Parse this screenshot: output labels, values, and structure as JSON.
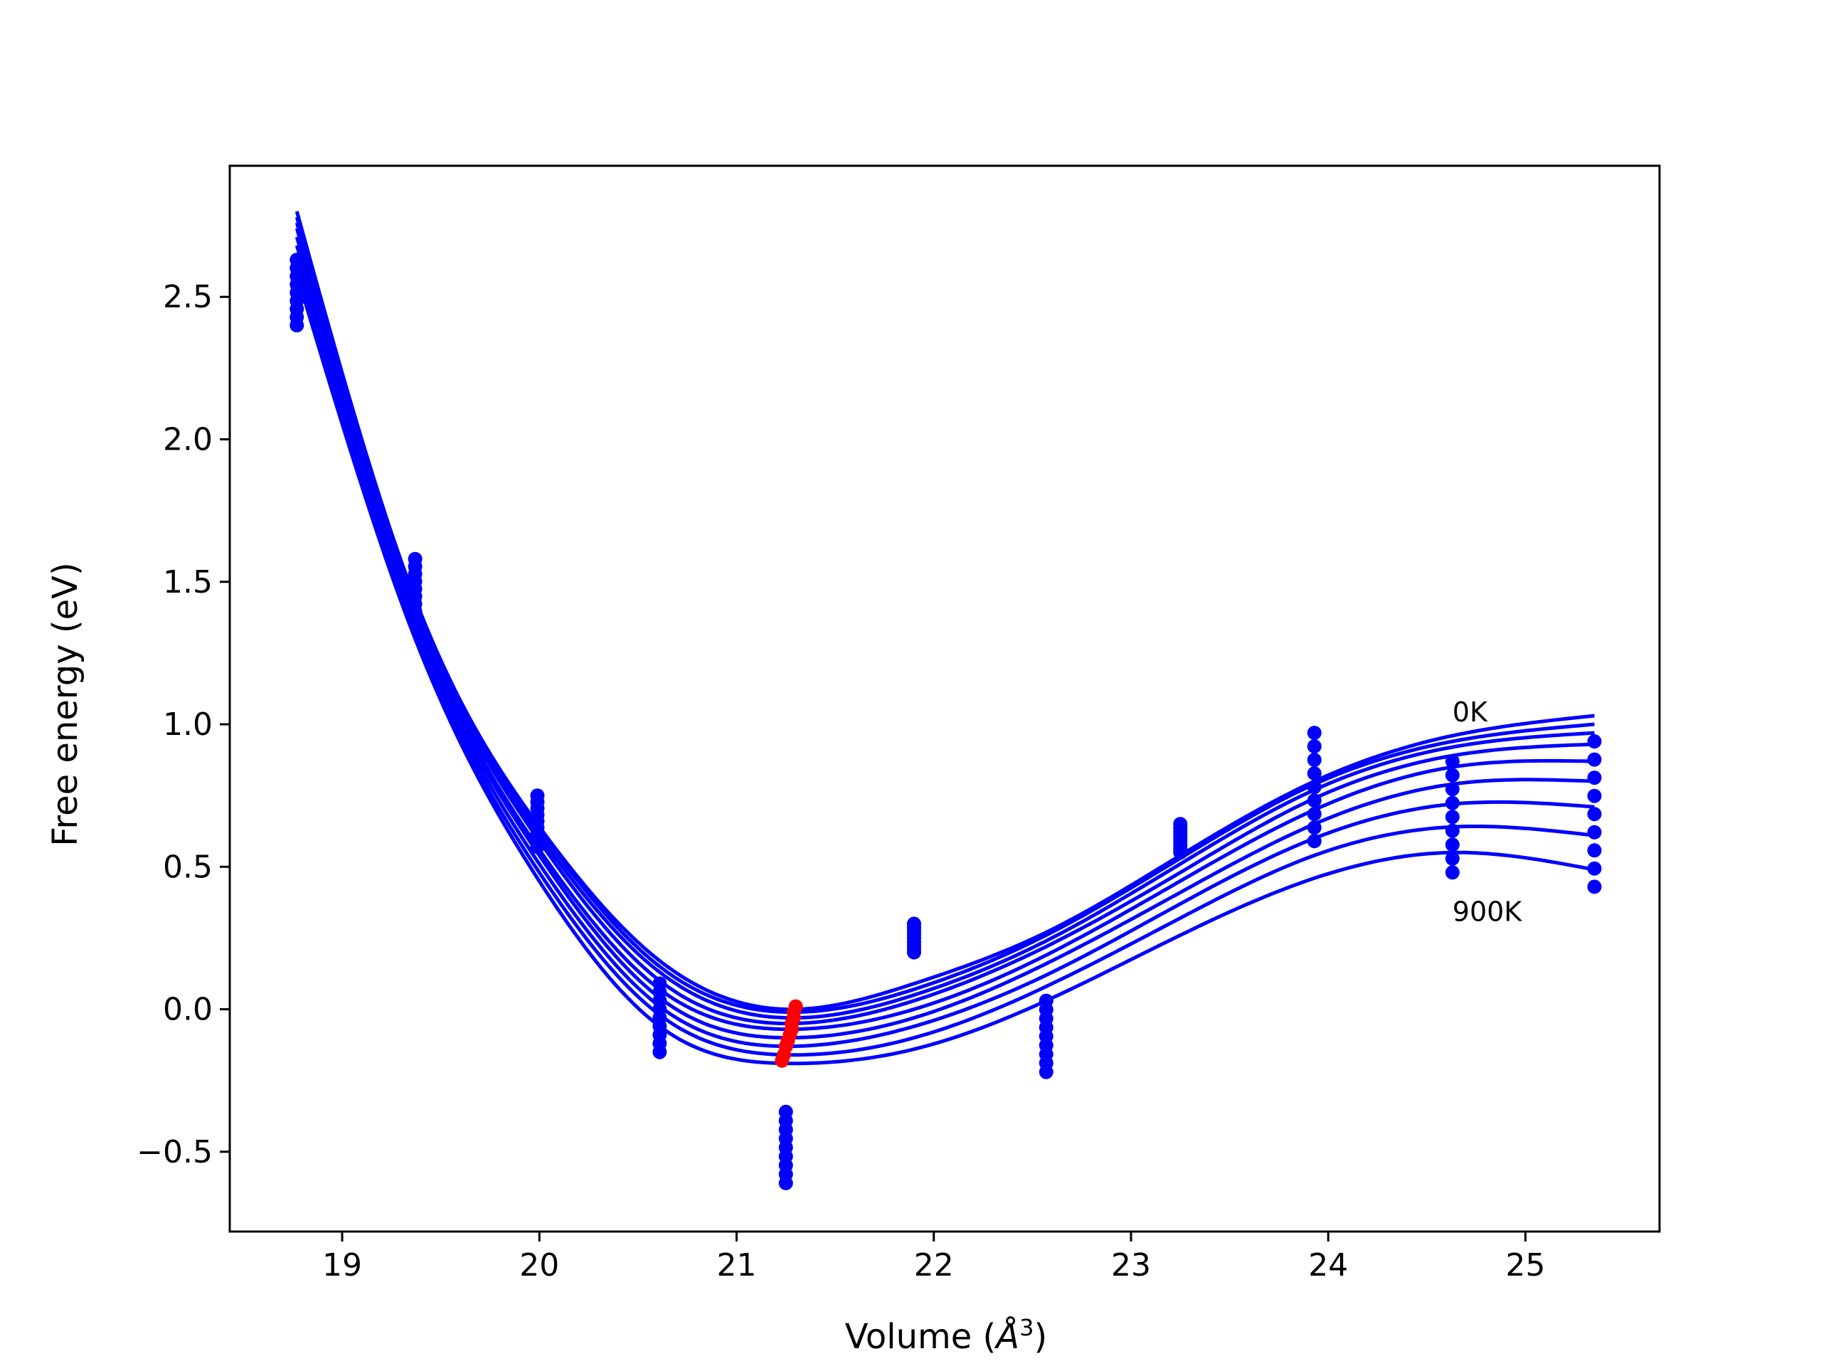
{
  "chart_data": {
    "type": "line",
    "xlabel_text": "Volume (",
    "xlabel_unit": "Å",
    "xlabel_sup": "3",
    "xlabel_close": ")",
    "ylabel": "Free energy (eV)",
    "xlim": [
      18.43,
      25.68
    ],
    "ylim": [
      -0.78,
      2.96
    ],
    "xticks": [
      19,
      20,
      21,
      22,
      23,
      24,
      25
    ],
    "yticks": [
      -0.5,
      0.0,
      0.5,
      1.0,
      1.5,
      2.0,
      2.5
    ],
    "xtick_labels": [
      "19",
      "20",
      "21",
      "22",
      "23",
      "24",
      "25"
    ],
    "ytick_labels": [
      "−0.5",
      "0.0",
      "0.5",
      "1.0",
      "1.5",
      "2.0",
      "2.5"
    ],
    "line_color": "#0000ff",
    "min_color": "#ff0000",
    "annotations": [
      {
        "text": "0K",
        "x": 24.63,
        "y": 1.01
      },
      {
        "text": "900K",
        "x": 24.63,
        "y": 0.31
      }
    ],
    "curve_x_range": [
      18.77,
      25.35
    ],
    "curve_series": [
      {
        "x": [
          18.77,
          19.37,
          19.99,
          20.61,
          21.25,
          21.9,
          22.57,
          23.25,
          23.93,
          24.63,
          25.35
        ],
        "y": [
          2.8,
          1.44,
          0.65,
          0.17,
          0.0,
          0.09,
          0.27,
          0.54,
          0.8,
          0.96,
          1.03
        ]
      },
      {
        "x": [
          18.77,
          19.37,
          19.99,
          20.61,
          21.25,
          21.9,
          22.57,
          23.25,
          23.93,
          24.63,
          25.35
        ],
        "y": [
          2.78,
          1.43,
          0.64,
          0.15,
          -0.01,
          0.07,
          0.26,
          0.53,
          0.79,
          0.94,
          1.0
        ]
      },
      {
        "x": [
          18.77,
          19.37,
          19.99,
          20.61,
          21.25,
          21.9,
          22.57,
          23.25,
          23.93,
          24.63,
          25.35
        ],
        "y": [
          2.76,
          1.42,
          0.62,
          0.13,
          -0.03,
          0.05,
          0.24,
          0.51,
          0.77,
          0.92,
          0.97
        ]
      },
      {
        "x": [
          18.77,
          19.37,
          19.99,
          20.61,
          21.25,
          21.9,
          22.57,
          23.25,
          23.93,
          24.63,
          25.35
        ],
        "y": [
          2.74,
          1.4,
          0.6,
          0.1,
          -0.05,
          0.03,
          0.22,
          0.48,
          0.74,
          0.89,
          0.93
        ]
      },
      {
        "x": [
          18.77,
          19.37,
          19.99,
          20.61,
          21.25,
          21.9,
          22.57,
          23.25,
          23.93,
          24.63,
          25.35
        ],
        "y": [
          2.71,
          1.38,
          0.57,
          0.07,
          -0.07,
          0.0,
          0.19,
          0.45,
          0.7,
          0.85,
          0.87
        ]
      },
      {
        "x": [
          18.77,
          19.37,
          19.99,
          20.61,
          21.25,
          21.9,
          22.57,
          23.25,
          23.93,
          24.63,
          25.35
        ],
        "y": [
          2.68,
          1.36,
          0.55,
          0.04,
          -0.1,
          -0.03,
          0.16,
          0.41,
          0.65,
          0.79,
          0.8
        ]
      },
      {
        "x": [
          18.77,
          19.37,
          19.99,
          20.61,
          21.25,
          21.9,
          22.57,
          23.25,
          23.93,
          24.63,
          25.35
        ],
        "y": [
          2.65,
          1.34,
          0.52,
          0.01,
          -0.13,
          -0.06,
          0.12,
          0.37,
          0.6,
          0.72,
          0.71
        ]
      },
      {
        "x": [
          18.77,
          19.37,
          19.99,
          20.61,
          21.25,
          21.9,
          22.57,
          23.25,
          23.93,
          24.63,
          25.35
        ],
        "y": [
          2.62,
          1.32,
          0.49,
          -0.02,
          -0.16,
          -0.1,
          0.08,
          0.32,
          0.54,
          0.64,
          0.61
        ]
      },
      {
        "x": [
          18.77,
          19.37,
          19.99,
          20.61,
          21.25,
          21.9,
          22.57,
          23.25,
          23.93,
          24.63,
          25.35
        ],
        "y": [
          2.58,
          1.3,
          0.46,
          -0.06,
          -0.19,
          -0.14,
          0.03,
          0.26,
          0.46,
          0.55,
          0.49
        ]
      }
    ],
    "scatter_points": {
      "x": [
        18.77,
        19.37,
        19.99,
        20.61,
        21.25,
        21.9,
        22.57,
        23.25,
        23.93,
        24.63,
        25.35
      ],
      "y_min": [
        2.4,
        1.37,
        0.57,
        -0.15,
        -0.61,
        0.2,
        -0.22,
        0.55,
        0.59,
        0.48,
        0.43
      ],
      "y_max": [
        2.63,
        1.58,
        0.75,
        0.09,
        -0.36,
        0.3,
        0.03,
        0.65,
        0.97,
        0.87,
        0.94
      ],
      "count": 9
    },
    "minima_points": {
      "x": [
        21.23,
        21.24,
        21.25,
        21.26,
        21.27,
        21.28,
        21.28,
        21.29,
        21.29,
        21.3
      ],
      "y": [
        -0.18,
        -0.16,
        -0.13,
        -0.11,
        -0.09,
        -0.07,
        -0.05,
        -0.03,
        -0.01,
        0.01
      ]
    }
  }
}
